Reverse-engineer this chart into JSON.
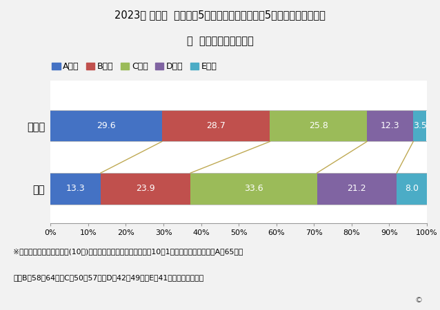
{
  "title_line1": "2023年 秋田県  女子小学5年生の体力運動能力の5段階評価による分布",
  "title_line2": "〜  全国平均との比較〜",
  "categories": [
    "秋田県",
    "全国"
  ],
  "segments": [
    "A段階",
    "B段階",
    "C段階",
    "D段階",
    "E段階"
  ],
  "values": [
    [
      29.6,
      28.7,
      25.8,
      12.3,
      3.5
    ],
    [
      13.3,
      23.9,
      33.6,
      21.2,
      8.0
    ]
  ],
  "colors": [
    "#4472C4",
    "#C0504D",
    "#9BBB59",
    "#8064A2",
    "#4BACC6"
  ],
  "footnote1": "※体力・運動能力総合評価(10歳)は新体力テストの項目別得点（10～1点）の合計によって、A：65点以",
  "footnote2": "上、B：58～64点、C：50～57点、D：42～49点、E：41点以下としている",
  "background_color": "#F2F2F2",
  "plot_bg_color": "#FFFFFF",
  "connector_color": "#B8A040"
}
